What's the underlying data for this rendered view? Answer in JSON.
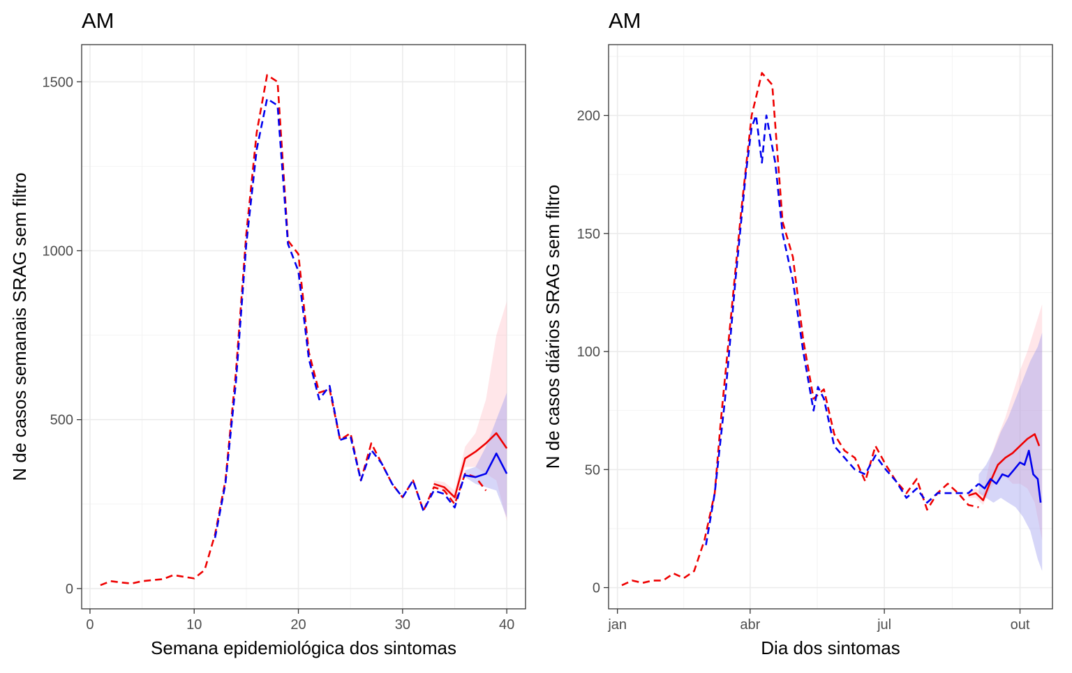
{
  "chart_data": [
    {
      "type": "line",
      "title": "AM",
      "xlabel": "Semana epidemiológica dos sintomas",
      "ylabel": "N de casos semanais SRAG sem filtro",
      "xlim": [
        -0.8,
        41.8
      ],
      "ylim": [
        -60,
        1610
      ],
      "x_ticks": [
        0,
        10,
        20,
        30,
        40
      ],
      "x_tick_labels": [
        "0",
        "10",
        "20",
        "30",
        "40"
      ],
      "y_ticks": [
        0,
        500,
        1000,
        1500
      ],
      "y_tick_labels": [
        "0",
        "500",
        "1000",
        "1500"
      ],
      "grid": true,
      "colors": {
        "red": "#ee0000",
        "blue": "#0000ee",
        "red_band": "#ffb6c1",
        "blue_band": "#9999ee"
      },
      "series": [
        {
          "color": "red",
          "style": "dashed",
          "x": [
            1,
            2,
            3,
            4,
            5,
            6,
            7,
            8,
            9,
            10,
            11,
            12,
            13,
            14,
            15,
            16,
            17,
            18,
            19,
            20,
            21,
            22,
            23,
            24,
            25,
            26,
            27,
            28,
            29,
            30,
            31,
            32,
            33,
            34,
            35,
            36,
            37,
            38
          ],
          "y": [
            10,
            22,
            18,
            15,
            22,
            25,
            28,
            40,
            35,
            30,
            55,
            160,
            320,
            640,
            1050,
            1350,
            1520,
            1500,
            1030,
            990,
            700,
            580,
            590,
            440,
            460,
            320,
            430,
            370,
            310,
            270,
            320,
            230,
            300,
            290,
            250,
            340,
            330,
            290
          ]
        },
        {
          "color": "blue",
          "style": "dashed",
          "x": [
            12,
            13,
            14,
            15,
            16,
            17,
            18,
            19,
            20,
            21,
            22,
            23,
            24,
            25,
            26,
            27,
            28,
            29,
            30,
            31,
            32,
            33,
            34,
            35,
            36
          ],
          "y": [
            150,
            310,
            610,
            1020,
            1300,
            1450,
            1430,
            1020,
            940,
            680,
            560,
            600,
            440,
            450,
            320,
            410,
            370,
            310,
            270,
            320,
            230,
            290,
            280,
            240,
            340
          ]
        },
        {
          "color": "red",
          "style": "solid",
          "x": [
            33,
            34,
            35,
            36,
            37,
            38,
            39,
            40
          ],
          "y": [
            310,
            300,
            270,
            385,
            405,
            430,
            460,
            415
          ]
        },
        {
          "color": "blue",
          "style": "solid",
          "x": [
            36,
            37,
            38,
            39,
            40
          ],
          "y": [
            335,
            330,
            340,
            400,
            340
          ]
        }
      ],
      "bands": [
        {
          "color": "red_band",
          "x": [
            33,
            34,
            35,
            36,
            37,
            38,
            39,
            40
          ],
          "lower": [
            300,
            290,
            260,
            360,
            360,
            340,
            320,
            200
          ],
          "upper": [
            320,
            315,
            290,
            420,
            460,
            560,
            750,
            850
          ]
        },
        {
          "color": "blue_band",
          "x": [
            36,
            37,
            38,
            39,
            40
          ],
          "lower": [
            330,
            310,
            300,
            290,
            210
          ],
          "upper": [
            350,
            360,
            420,
            500,
            580
          ]
        }
      ]
    },
    {
      "type": "line",
      "title": "AM",
      "xlabel": "Dia dos sintomas",
      "ylabel": "N de casos diários SRAG sem filtro",
      "xlim": [
        -6,
        295
      ],
      "ylim": [
        -9,
        230
      ],
      "x_ticks": [
        0,
        90,
        181,
        273
      ],
      "x_tick_labels": [
        "jan",
        "abr",
        "jul",
        "out"
      ],
      "y_ticks": [
        0,
        50,
        100,
        150,
        200
      ],
      "y_tick_labels": [
        "0",
        "50",
        "100",
        "150",
        "200"
      ],
      "grid": true,
      "colors": {
        "red": "#ee0000",
        "blue": "#0000ee",
        "red_band": "#ffb6c1",
        "blue_band": "#9999ee"
      },
      "series": [
        {
          "color": "red",
          "style": "dashed",
          "x": [
            3,
            10,
            17,
            24,
            31,
            38,
            45,
            52,
            59,
            66,
            70,
            77,
            84,
            91,
            98,
            105,
            112,
            119,
            126,
            133,
            140,
            147,
            154,
            161,
            168,
            175,
            182,
            189,
            196,
            203,
            210,
            217,
            224,
            231,
            238,
            245
          ],
          "y": [
            1,
            3,
            2,
            3,
            3,
            6,
            4,
            7,
            20,
            40,
            70,
            115,
            160,
            200,
            218,
            213,
            155,
            140,
            105,
            80,
            84,
            65,
            58,
            55,
            45,
            60,
            52,
            45,
            40,
            46,
            33,
            40,
            44,
            40,
            35,
            34
          ]
        },
        {
          "color": "blue",
          "style": "dashed",
          "x": [
            60,
            66,
            73,
            80,
            87,
            91,
            94,
            98,
            101,
            104,
            107,
            112,
            119,
            126,
            133,
            136,
            140,
            147,
            154,
            161,
            168,
            175,
            182,
            189,
            196,
            203,
            210,
            217,
            224,
            231,
            238,
            245
          ],
          "y": [
            18,
            40,
            80,
            130,
            175,
            195,
            200,
            180,
            200,
            190,
            180,
            150,
            130,
            100,
            75,
            85,
            80,
            60,
            55,
            50,
            48,
            56,
            50,
            45,
            38,
            42,
            36,
            40,
            40,
            40,
            40,
            44
          ]
        },
        {
          "color": "red",
          "style": "solid",
          "x": [
            238,
            243,
            248,
            253,
            258,
            263,
            268,
            273,
            278,
            283,
            286
          ],
          "y": [
            39,
            40,
            37,
            45,
            52,
            55,
            57,
            60,
            63,
            65,
            60
          ]
        },
        {
          "color": "blue",
          "style": "solid",
          "x": [
            245,
            249,
            253,
            257,
            261,
            265,
            269,
            273,
            276,
            279,
            282,
            285,
            287
          ],
          "y": [
            44,
            42,
            46,
            44,
            48,
            47,
            50,
            53,
            52,
            58,
            48,
            46,
            36
          ]
        }
      ],
      "bands": [
        {
          "color": "red_band",
          "x": [
            238,
            243,
            248,
            253,
            258,
            263,
            268,
            273,
            278,
            283,
            288
          ],
          "lower": [
            38,
            38,
            35,
            42,
            46,
            47,
            44,
            44,
            42,
            36,
            20
          ],
          "upper": [
            41,
            42,
            40,
            55,
            64,
            72,
            82,
            92,
            100,
            110,
            120
          ]
        },
        {
          "color": "blue_band",
          "x": [
            245,
            250,
            255,
            260,
            265,
            270,
            275,
            280,
            285,
            288
          ],
          "lower": [
            40,
            38,
            36,
            38,
            36,
            34,
            30,
            24,
            12,
            7
          ],
          "upper": [
            48,
            52,
            58,
            66,
            72,
            80,
            88,
            96,
            102,
            108
          ]
        }
      ]
    }
  ]
}
